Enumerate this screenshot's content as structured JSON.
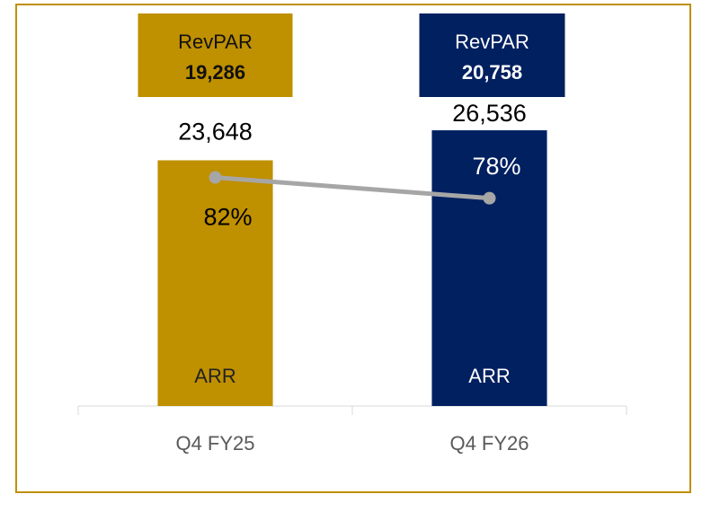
{
  "chart_data": {
    "type": "bar",
    "categories": [
      "Q4 FY25",
      "Q4 FY26"
    ],
    "series": [
      {
        "name": "ARR",
        "type": "bar",
        "colors": [
          "#bf9000",
          "#002060"
        ],
        "label_colors": [
          "#222222",
          "#ffffff"
        ],
        "values": [
          23648,
          26536
        ],
        "value_labels": [
          "23,648",
          "26,536"
        ]
      },
      {
        "type": "line",
        "axis": "y2",
        "color": "#a6a6a6",
        "values": [
          82,
          78
        ],
        "value_labels": [
          "82%",
          "78%"
        ]
      }
    ],
    "revpar": {
      "name": "RevPAR",
      "colors": [
        "#bf9000",
        "#002060"
      ],
      "text_colors": [
        "#111111",
        "#ffffff"
      ],
      "values": [
        19286,
        20758
      ],
      "value_labels": [
        "19,286",
        "20,758"
      ]
    },
    "ylim": [
      0,
      30000
    ],
    "y2lim": [
      38,
      98
    ],
    "border_color": "#bf9000"
  }
}
